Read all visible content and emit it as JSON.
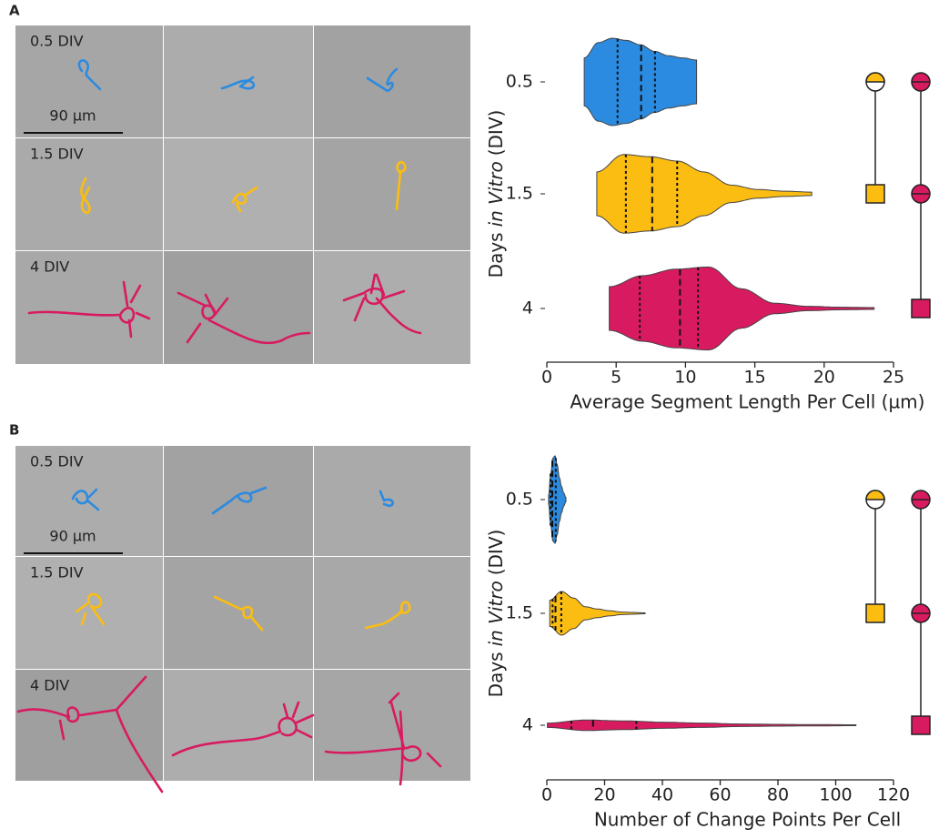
{
  "panels": [
    {
      "letter": "A",
      "row_labels": [
        "0.5 DIV",
        "1.5 DIV",
        "4 DIV"
      ],
      "scale_bar": "90 µm"
    },
    {
      "letter": "B",
      "row_labels": [
        "0.5 DIV",
        "1.5 DIV",
        "4 DIV"
      ],
      "scale_bar": "90 µm"
    }
  ],
  "chart_data": [
    {
      "type": "violin",
      "categories": [
        "0.5",
        "1.5",
        "4"
      ],
      "xlabel": "Average Segment Length Per Cell (µm)",
      "ylabel": [
        "Days",
        "in Vitro",
        "(DIV)"
      ],
      "xlim": [
        0,
        25
      ],
      "xticks": [
        0,
        5,
        10,
        15,
        20,
        25
      ],
      "colors": [
        "#2b8be0",
        "#fbbd11",
        "#d81b60"
      ],
      "violins": [
        {
          "min": 2.7,
          "q1": 5.1,
          "median": 6.8,
          "q3": 7.8,
          "max": 10.8,
          "density": [
            0.55,
            0.9,
            1.0,
            0.95,
            0.85,
            0.7,
            0.6,
            0.55,
            0.5
          ]
        },
        {
          "min": 3.6,
          "q1": 5.7,
          "median": 7.6,
          "q3": 9.4,
          "max": 19.1,
          "density": [
            0.5,
            0.9,
            0.85,
            0.75,
            0.5,
            0.2,
            0.1,
            0.06,
            0.04
          ]
        },
        {
          "min": 4.5,
          "q1": 6.7,
          "median": 9.6,
          "q3": 10.9,
          "max": 23.6,
          "density": [
            0.5,
            0.75,
            0.9,
            0.95,
            0.45,
            0.12,
            0.05,
            0.03,
            0.02
          ]
        }
      ]
    },
    {
      "type": "violin",
      "categories": [
        "0.5",
        "1.5",
        "4"
      ],
      "xlabel": "Number of Change Points Per Cell",
      "ylabel": [
        "Days",
        "in Vitro",
        "(DIV)"
      ],
      "xlim": [
        0,
        120
      ],
      "xticks": [
        0,
        20,
        40,
        60,
        80,
        100,
        120
      ],
      "colors": [
        "#2b8be0",
        "#fbbd11",
        "#d81b60"
      ],
      "violins": [
        {
          "min": 0.6,
          "q1": 1.3,
          "median": 1.9,
          "q3": 3.1,
          "max": 6.6,
          "density": [
            0.1,
            0.6,
            0.95,
            1.0,
            0.8,
            0.5,
            0.3,
            0.15,
            0.05
          ]
        },
        {
          "min": 1,
          "q1": 2,
          "median": 3,
          "q3": 5,
          "max": 34,
          "density": [
            0.3,
            0.5,
            0.35,
            0.15,
            0.1,
            0.06,
            0.03,
            0.02,
            0.01
          ]
        },
        {
          "min": 0.2,
          "q1": 8.5,
          "median": 16,
          "q3": 31,
          "max": 107,
          "density": [
            0.05,
            0.12,
            0.1,
            0.07,
            0.05,
            0.03,
            0.02,
            0.015,
            0.01
          ]
        }
      ]
    }
  ]
}
